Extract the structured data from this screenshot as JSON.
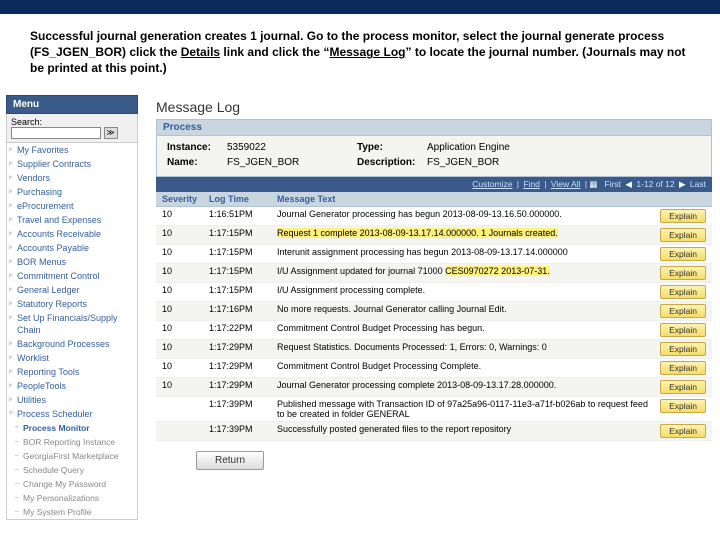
{
  "instruction": {
    "part1": "Successful journal generation creates 1 journal.  Go to the process monitor, select the journal generate process (FS_JGEN_BOR) click the ",
    "u1": "Details",
    "part2": " link and click the “",
    "u2": "Message Log",
    "part3": "” to locate the journal number. (Journals may not be printed at this point.)"
  },
  "sidebar": {
    "menu_label": "Menu",
    "search_label": "Search:",
    "search_value": "",
    "go_label": "≫",
    "items": [
      {
        "label": "My Favorites"
      },
      {
        "label": "Supplier Contracts"
      },
      {
        "label": "Vendors"
      },
      {
        "label": "Purchasing"
      },
      {
        "label": "eProcurement"
      },
      {
        "label": "Travel and Expenses"
      },
      {
        "label": "Accounts Receivable"
      },
      {
        "label": "Accounts Payable"
      },
      {
        "label": "BOR Menus"
      },
      {
        "label": "Commitment Control"
      },
      {
        "label": "General Ledger"
      },
      {
        "label": "Statutory Reports"
      },
      {
        "label": "Set Up Financials/Supply Chain"
      },
      {
        "label": "Background Processes"
      },
      {
        "label": "Worklist"
      },
      {
        "label": "Reporting Tools"
      },
      {
        "label": "PeopleTools"
      },
      {
        "label": "Utilities"
      }
    ],
    "scheduler_label": "Process Scheduler",
    "scheduler_children": [
      {
        "label": "Process Monitor",
        "active": true
      },
      {
        "label": "BOR Reporting Instance"
      },
      {
        "label": "GeorgiaFirst Marketplace"
      },
      {
        "label": "Schedule Query"
      },
      {
        "label": "Change My Password"
      },
      {
        "label": "My Personalizations"
      },
      {
        "label": "My System Profile"
      }
    ]
  },
  "main": {
    "title": "Message Log",
    "process_header": "Process",
    "process": {
      "instance_lbl": "Instance:",
      "instance": "5359022",
      "type_lbl": "Type:",
      "type": "Application Engine",
      "name_lbl": "Name:",
      "name": "FS_JGEN_BOR",
      "desc_lbl": "Description:",
      "desc": "FS_JGEN_BOR"
    },
    "toolbar": {
      "customize": "Customize",
      "find": "Find",
      "viewall": "View All",
      "first_lbl": "First",
      "range": "1-12 of 12",
      "last_lbl": "Last"
    },
    "cols": {
      "sev": "Severity",
      "time": "Log Time",
      "msg": "Message Text"
    },
    "rows": [
      {
        "sev": "10",
        "time": "1:16:51PM",
        "msg": "Journal Generator processing has begun 2013-08-09-13.16.50.000000."
      },
      {
        "sev": "10",
        "time": "1:17:15PM",
        "msg": "Request 1 complete 2013-08-09-13.17.14.000000. 1 Journals created.",
        "hl": true
      },
      {
        "sev": "10",
        "time": "1:17:15PM",
        "msg": "Interunit assignment processing has begun 2013-08-09-13.17.14.000000"
      },
      {
        "sev": "10",
        "time": "1:17:15PM",
        "msg": "I/U Assignment updated for journal 71000 ",
        "hl_tail": "CES0970272 2013-07-31."
      },
      {
        "sev": "10",
        "time": "1:17:15PM",
        "msg": "I/U Assignment processing complete."
      },
      {
        "sev": "10",
        "time": "1:17:16PM",
        "msg": "No more requests.  Journal Generator calling Journal Edit."
      },
      {
        "sev": "10",
        "time": "1:17:22PM",
        "msg": "Commitment Control Budget Processing has begun."
      },
      {
        "sev": "10",
        "time": "1:17:29PM",
        "msg": "Request Statistics. Documents Processed: 1, Errors: 0, Warnings: 0"
      },
      {
        "sev": "10",
        "time": "1:17:29PM",
        "msg": "Commitment Control Budget Processing Complete."
      },
      {
        "sev": "10",
        "time": "1:17:29PM",
        "msg": "Journal Generator processing complete 2013-08-09-13.17.28.000000."
      },
      {
        "sev": "",
        "time": "1:17:39PM",
        "msg": "Published message with Transaction ID of 97a25a96-0117-11e3-a71f-b026ab to request feed to be created in folder GENERAL"
      },
      {
        "sev": "",
        "time": "1:17:39PM",
        "msg": "Successfully posted generated files to the report repository"
      }
    ],
    "explain": "Explain",
    "return": "Return"
  }
}
